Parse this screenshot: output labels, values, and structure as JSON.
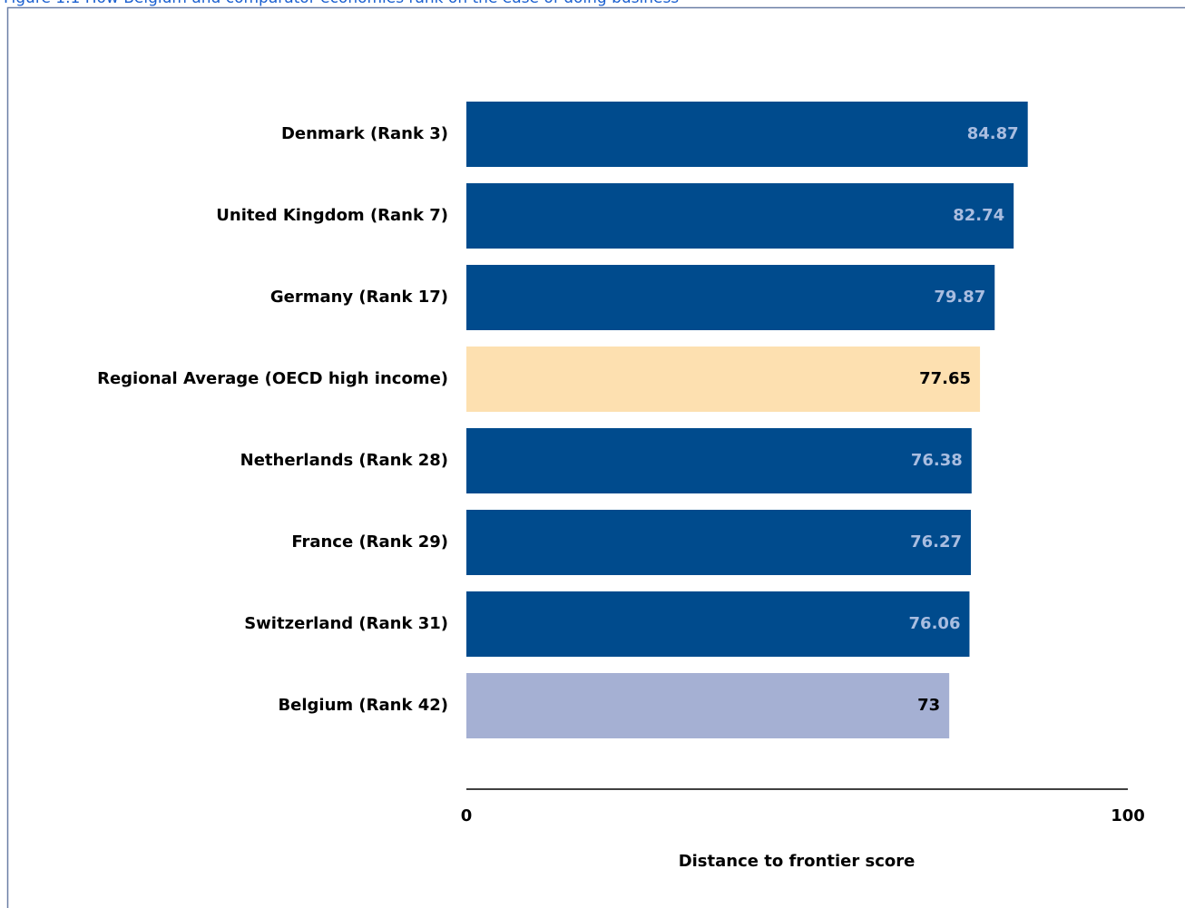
{
  "chart_data": {
    "type": "hbar",
    "title": "Figure 1.1 How Belgium and comparator economies rank on the ease of doing business",
    "xlabel": "Distance to frontier score",
    "categories": [
      "Denmark (Rank 3)",
      "United Kingdom (Rank 7)",
      "Germany (Rank 17)",
      "Regional Average (OECD high income)",
      "Netherlands (Rank 28)",
      "France (Rank 29)",
      "Switzerland (Rank 31)",
      "Belgium (Rank 42)"
    ],
    "values": [
      84.87,
      82.74,
      79.87,
      77.65,
      76.38,
      76.27,
      76.06,
      73
    ],
    "colors": [
      "#004b8d",
      "#004b8d",
      "#004b8d",
      "#fde0b0",
      "#004b8d",
      "#004b8d",
      "#004b8d",
      "#a5b0d3"
    ],
    "xlim": [
      0,
      100
    ],
    "xticks": [
      0,
      100
    ]
  }
}
